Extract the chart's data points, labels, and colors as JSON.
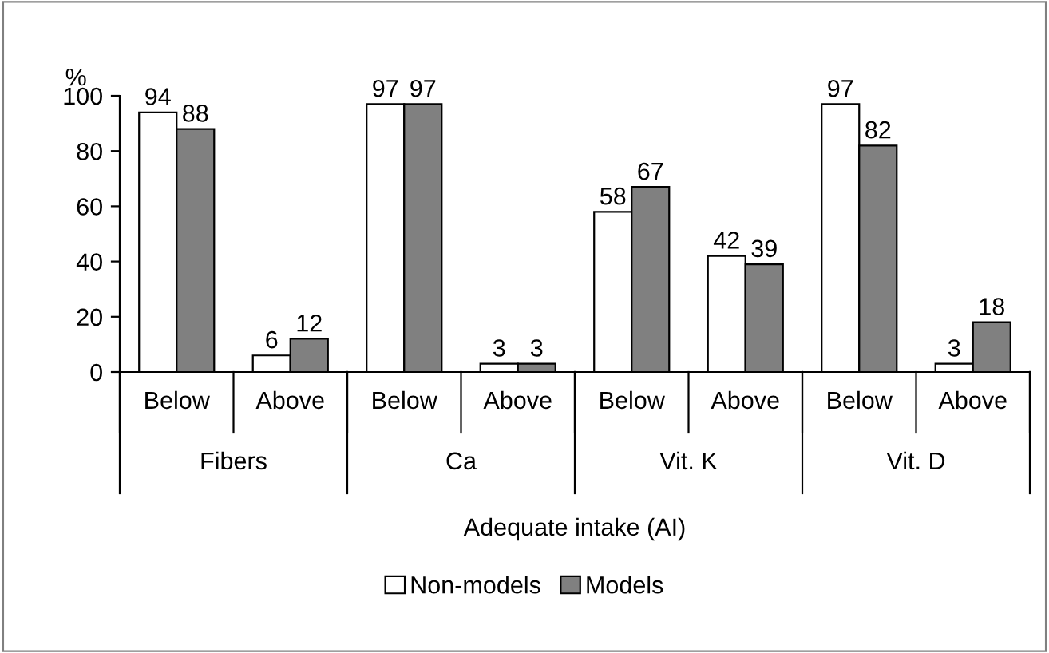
{
  "chart_data": {
    "type": "bar",
    "ylabel": "%",
    "xlabel": "Adequate intake (AI)",
    "categories": [
      "Below",
      "Above",
      "Below",
      "Above",
      "Below",
      "Above",
      "Below",
      "Above"
    ],
    "series": [
      {
        "name": "Non-models",
        "color": "#ffffff",
        "values": [
          94,
          6,
          97,
          3,
          58,
          42,
          97,
          3
        ]
      },
      {
        "name": "Models",
        "color": "#808080",
        "values": [
          88,
          12,
          97,
          3,
          67,
          39,
          82,
          18
        ]
      }
    ],
    "annotations": [
      "Fibers",
      "Ca",
      "Vit. K",
      "Vit. D"
    ],
    "ylim": [
      0,
      100
    ],
    "yticks": [
      0,
      20,
      40,
      60,
      80,
      100
    ],
    "data_labels": true,
    "grid": false,
    "legend": "bottom"
  }
}
